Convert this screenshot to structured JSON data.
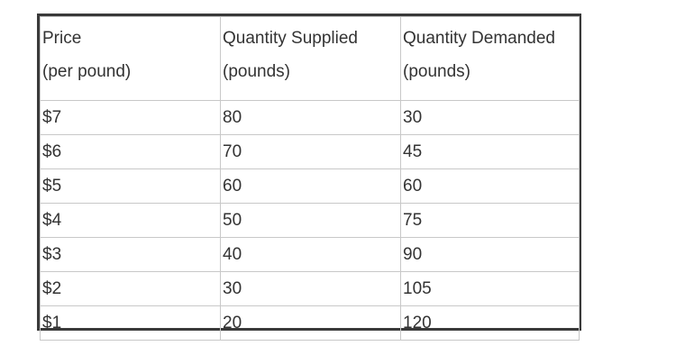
{
  "table": {
    "headers": [
      {
        "line1": "Price",
        "line2": "(per pound)"
      },
      {
        "line1": "Quantity Supplied",
        "line2": "(pounds)"
      },
      {
        "line1": "Quantity Demanded",
        "line2": "(pounds)"
      }
    ],
    "rows": [
      [
        "$7",
        "80",
        "30"
      ],
      [
        "$6",
        "70",
        "45"
      ],
      [
        "$5",
        "60",
        "60"
      ],
      [
        "$4",
        "50",
        "75"
      ],
      [
        "$3",
        "40",
        "90"
      ],
      [
        "$2",
        "30",
        "105"
      ],
      [
        "$1",
        "20",
        "120"
      ]
    ]
  }
}
